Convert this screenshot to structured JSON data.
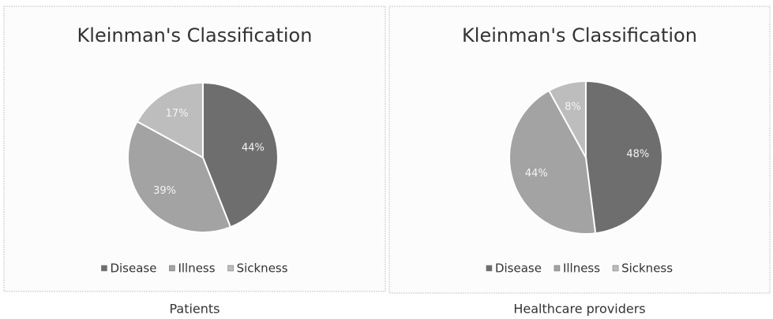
{
  "chart_data": [
    {
      "type": "pie",
      "title": "Kleinman's Classification",
      "categories": [
        "Disease",
        "Illness",
        "Sickness"
      ],
      "values": [
        44,
        39,
        17
      ],
      "value_labels": [
        "44%",
        "39%",
        "17%"
      ],
      "colors": [
        "#6e6e6e",
        "#a3a3a3",
        "#bdbdbd"
      ],
      "caption": "Patients"
    },
    {
      "type": "pie",
      "title": "Kleinman's Classification",
      "categories": [
        "Disease",
        "Illness",
        "Sickness"
      ],
      "values": [
        48,
        44,
        8
      ],
      "value_labels": [
        "48%",
        "44%",
        "8%"
      ],
      "colors": [
        "#6e6e6e",
        "#a3a3a3",
        "#bdbdbd"
      ],
      "caption": "Healthcare providers"
    }
  ]
}
